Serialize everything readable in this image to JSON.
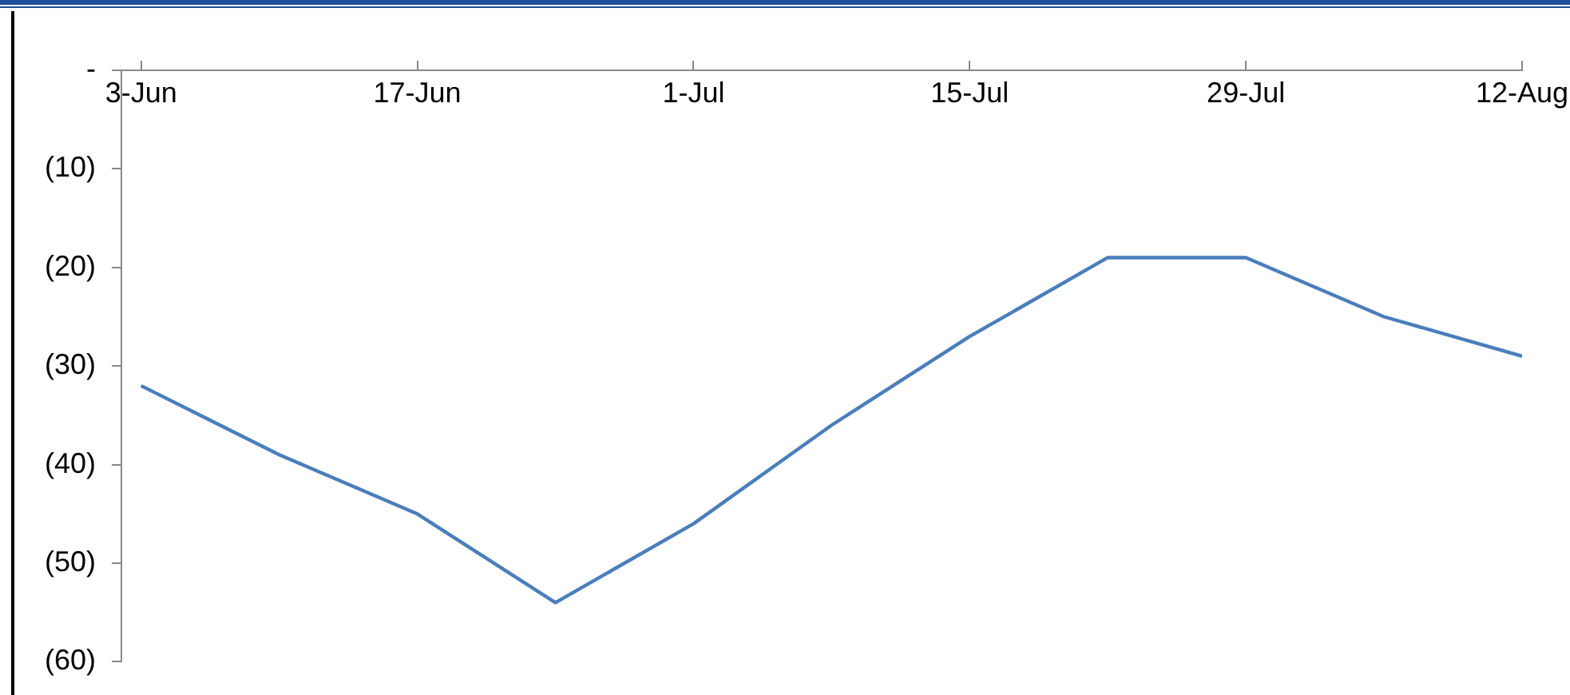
{
  "chart_data": {
    "type": "line",
    "x": [
      "--06-03",
      "--06-10",
      "--06-17",
      "--06-24",
      "--07-01",
      "--07-08",
      "--07-15",
      "--07-22",
      "--07-29",
      "--08-05",
      "--08-12"
    ],
    "series": [
      {
        "color": "#4a7ebb",
        "values": [
          -32,
          -39,
          -45,
          -54,
          -46,
          -36,
          -27,
          -19,
          -19,
          -25,
          -29
        ]
      }
    ],
    "xlim": [
      "--06-02",
      "--08-12"
    ],
    "xticks": [
      {
        "value": "--06-03",
        "label": "3-Jun"
      },
      {
        "value": "--06-17",
        "label": "17-Jun"
      },
      {
        "value": "--07-01",
        "label": "1-Jul"
      },
      {
        "value": "--07-15",
        "label": "15-Jul"
      },
      {
        "value": "--07-29",
        "label": "29-Jul"
      },
      {
        "value": "--08-12",
        "label": "12-Aug"
      }
    ],
    "ylim": [
      -60,
      0
    ],
    "yticks": [
      {
        "value": 0,
        "label": "-"
      },
      {
        "value": -10,
        "label": "(10)"
      },
      {
        "value": -20,
        "label": "(20)"
      },
      {
        "value": -30,
        "label": "(30)"
      },
      {
        "value": -40,
        "label": "(40)"
      },
      {
        "value": -50,
        "label": "(50)"
      },
      {
        "value": -60,
        "label": "(60)"
      }
    ],
    "grid": false,
    "legend": false,
    "marker": "none",
    "line_style": "solid"
  }
}
